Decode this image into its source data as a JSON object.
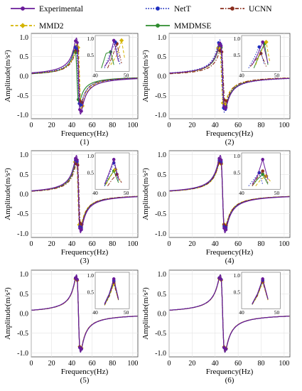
{
  "legend": {
    "entries": [
      {
        "label": "Experimental",
        "color": "#6a1b9a",
        "style": "solid",
        "marker": "circle"
      },
      {
        "label": "NetT",
        "color": "#1f2fbf",
        "style": "dotted",
        "marker": "circle"
      },
      {
        "label": "UCNN",
        "color": "#8b2f1f",
        "style": "dashdot",
        "marker": "circle"
      },
      {
        "label": "MMD2",
        "color": "#d4b400",
        "style": "dashed",
        "marker": "diamond"
      },
      {
        "label": "MMDMSE",
        "color": "#2e8b2e",
        "style": "solid",
        "marker": "circle"
      }
    ]
  },
  "chart_data": [
    {
      "type": "line",
      "panel_label": "(1)",
      "xlabel": "Frequency(Hz)",
      "ylabel": "Amplitude(m/s²)",
      "xlim": [
        0,
        105
      ],
      "ylim": [
        -1.1,
        1.1
      ],
      "xticks": [
        "0",
        "20",
        "40",
        "60",
        "80",
        "100"
      ],
      "yticks": [
        "-1.0",
        "-0.5",
        "0.0",
        "0.5",
        "1.0"
      ],
      "grid": true,
      "inset": {
        "yticks": [
          "1.0",
          "0.5"
        ],
        "xticks": [
          "40",
          "50"
        ],
        "series": [
          {
            "name": "Experimental",
            "x": [
              43,
              44.5,
              46,
              47.5
            ],
            "y": [
              0.15,
              0.35,
              0.95,
              0.3
            ]
          },
          {
            "name": "NetT",
            "x": [
              43,
              45,
              46.5,
              48
            ],
            "y": [
              0.1,
              0.6,
              0.9,
              0.2
            ]
          },
          {
            "name": "UCNN",
            "x": [
              44,
              45.5,
              47,
              48.5
            ],
            "y": [
              0.1,
              0.45,
              0.85,
              0.25
            ]
          },
          {
            "name": "MMD2",
            "x": [
              45,
              47,
              48.5,
              49.5
            ],
            "y": [
              0.2,
              0.5,
              0.95,
              0.4
            ]
          },
          {
            "name": "MMDMSE",
            "x": [
              42,
              43.5,
              45,
              46
            ],
            "y": [
              0.1,
              0.55,
              0.6,
              0.2
            ]
          }
        ]
      },
      "series": [
        {
          "name": "Experimental",
          "f0": 46.5,
          "amp": 1.0
        },
        {
          "name": "NetT",
          "f0": 46.0,
          "amp": 0.82
        },
        {
          "name": "UCNN",
          "f0": 47.0,
          "amp": 0.75
        },
        {
          "name": "MMD2",
          "f0": 47.5,
          "amp": 0.85
        },
        {
          "name": "MMDMSE",
          "f0": 45.0,
          "amp": 0.7
        }
      ]
    },
    {
      "type": "line",
      "panel_label": "(2)",
      "xlabel": "Frequency(Hz)",
      "ylabel": "Amplitude(m/s²)",
      "xlim": [
        0,
        105
      ],
      "ylim": [
        -1.1,
        1.1
      ],
      "xticks": [
        "0",
        "20",
        "40",
        "60",
        "80",
        "100"
      ],
      "yticks": [
        "-1.0",
        "-0.5",
        "0.0",
        "0.5",
        "1.0"
      ],
      "grid": true,
      "inset": {
        "yticks": [
          "1.0",
          "0.5"
        ],
        "xticks": [
          "40",
          "50"
        ],
        "series": [
          {
            "name": "Experimental",
            "x": [
              43,
              44.5,
              46,
              47.5
            ],
            "y": [
              0.2,
              0.5,
              0.9,
              0.25
            ]
          },
          {
            "name": "NetT",
            "x": [
              42,
              43.5,
              45,
              46.5
            ],
            "y": [
              0.1,
              0.4,
              0.75,
              0.2
            ]
          },
          {
            "name": "UCNN",
            "x": [
              42.5,
              44,
              45.5,
              47
            ],
            "y": [
              0.15,
              0.35,
              0.55,
              0.15
            ]
          },
          {
            "name": "MMD2",
            "x": [
              44,
              45.5,
              47,
              48
            ],
            "y": [
              0.2,
              0.6,
              0.9,
              0.3
            ]
          },
          {
            "name": "MMDMSE",
            "x": [
              43.5,
              45,
              46.5,
              47.5
            ],
            "y": [
              0.1,
              0.5,
              0.85,
              0.2
            ]
          }
        ]
      },
      "series": [
        {
          "name": "Experimental",
          "f0": 46.5,
          "amp": 0.9
        },
        {
          "name": "NetT",
          "f0": 46.0,
          "amp": 0.95
        },
        {
          "name": "UCNN",
          "f0": 47.0,
          "amp": 0.72
        },
        {
          "name": "MMD2",
          "f0": 45.5,
          "amp": 0.8
        },
        {
          "name": "MMDMSE",
          "f0": 46.5,
          "amp": 0.85
        }
      ]
    },
    {
      "type": "line",
      "panel_label": "(3)",
      "xlabel": "Frequency(Hz)",
      "ylabel": "Amplitude(m/s²)",
      "xlim": [
        0,
        105
      ],
      "ylim": [
        -1.1,
        1.1
      ],
      "xticks": [
        "0",
        "20",
        "40",
        "60",
        "80",
        "100"
      ],
      "yticks": [
        "-1.0",
        "-0.5",
        "0.0",
        "0.5",
        "1.0"
      ],
      "grid": true,
      "inset": {
        "yticks": [
          "1.0",
          "0.5"
        ],
        "xticks": [
          "40",
          "50"
        ],
        "series": [
          {
            "name": "Experimental",
            "x": [
              43,
              44.5,
              46,
              47.5
            ],
            "y": [
              0.15,
              0.5,
              0.9,
              0.3
            ]
          },
          {
            "name": "NetT",
            "x": [
              43,
              44.5,
              46,
              47.5
            ],
            "y": [
              0.1,
              0.45,
              0.8,
              0.25
            ]
          },
          {
            "name": "UCNN",
            "x": [
              44,
              45.5,
              47,
              48.5
            ],
            "y": [
              0.1,
              0.3,
              0.45,
              0.2
            ]
          },
          {
            "name": "MMD2",
            "x": [
              43.5,
              45,
              46.5,
              48
            ],
            "y": [
              0.15,
              0.4,
              0.6,
              0.25
            ]
          },
          {
            "name": "MMDMSE",
            "x": [
              43,
              44.5,
              46,
              47.5
            ],
            "y": [
              0.1,
              0.35,
              0.55,
              0.2
            ]
          }
        ]
      },
      "series": [
        {
          "name": "Experimental",
          "f0": 46.5,
          "amp": 1.0
        },
        {
          "name": "NetT",
          "f0": 46.5,
          "amp": 0.95
        },
        {
          "name": "UCNN",
          "f0": 47.0,
          "amp": 0.85
        },
        {
          "name": "MMD2",
          "f0": 46.0,
          "amp": 0.9
        },
        {
          "name": "MMDMSE",
          "f0": 46.5,
          "amp": 0.9
        }
      ]
    },
    {
      "type": "line",
      "panel_label": "(4)",
      "xlabel": "Frequency(Hz)",
      "ylabel": "Amplitude(m/s²)",
      "xlim": [
        0,
        105
      ],
      "ylim": [
        -1.1,
        1.1
      ],
      "xticks": [
        "0",
        "20",
        "40",
        "60",
        "80",
        "100"
      ],
      "yticks": [
        "-1.0",
        "-0.5",
        "0.0",
        "0.5",
        "1.0"
      ],
      "grid": true,
      "inset": {
        "yticks": [
          "1.0",
          "0.5"
        ],
        "xticks": [
          "40",
          "50"
        ],
        "series": [
          {
            "name": "Experimental",
            "x": [
              43,
              44.5,
              46,
              47.5
            ],
            "y": [
              0.15,
              0.4,
              0.9,
              0.3
            ]
          },
          {
            "name": "NetT",
            "x": [
              42,
              43.5,
              45,
              46
            ],
            "y": [
              0.1,
              0.3,
              0.5,
              0.15
            ]
          },
          {
            "name": "UCNN",
            "x": [
              43,
              44.5,
              46,
              47.5
            ],
            "y": [
              0.1,
              0.35,
              0.55,
              0.2
            ]
          },
          {
            "name": "MMD2",
            "x": [
              44,
              45.5,
              47,
              48.5
            ],
            "y": [
              0.1,
              0.3,
              0.4,
              0.2
            ]
          },
          {
            "name": "MMDMSE",
            "x": [
              43,
              44.5,
              46,
              47.5
            ],
            "y": [
              0.1,
              0.3,
              0.45,
              0.15
            ]
          }
        ]
      },
      "series": [
        {
          "name": "Experimental",
          "f0": 46.5,
          "amp": 1.0
        },
        {
          "name": "NetT",
          "f0": 46.5,
          "amp": 0.95
        },
        {
          "name": "UCNN",
          "f0": 46.5,
          "amp": 0.9
        },
        {
          "name": "MMD2",
          "f0": 46.5,
          "amp": 0.88
        },
        {
          "name": "MMDMSE",
          "f0": 46.5,
          "amp": 0.92
        }
      ]
    },
    {
      "type": "line",
      "panel_label": "(5)",
      "xlabel": "Frequency(Hz)",
      "ylabel": "Amplitude(m/s²)",
      "xlim": [
        0,
        105
      ],
      "ylim": [
        -1.1,
        1.1
      ],
      "xticks": [
        "0",
        "20",
        "40",
        "60",
        "80",
        "100"
      ],
      "yticks": [
        "-1.0",
        "-0.5",
        "0.0",
        "0.5",
        "1.0"
      ],
      "grid": true,
      "inset": {
        "yticks": [
          "1.0",
          "0.5"
        ],
        "xticks": [
          "40",
          "50"
        ],
        "series": [
          {
            "name": "Experimental",
            "x": [
              43,
              44.5,
              46,
              47.5
            ],
            "y": [
              0.15,
              0.45,
              0.9,
              0.3
            ]
          },
          {
            "name": "NetT",
            "x": [
              43,
              44.5,
              46,
              47.5
            ],
            "y": [
              0.12,
              0.4,
              0.85,
              0.28
            ]
          },
          {
            "name": "UCNN",
            "x": [
              43,
              44.5,
              46,
              47.5
            ],
            "y": [
              0.12,
              0.38,
              0.8,
              0.26
            ]
          },
          {
            "name": "MMD2",
            "x": [
              43,
              44.5,
              46,
              47.5
            ],
            "y": [
              0.1,
              0.35,
              0.75,
              0.25
            ]
          },
          {
            "name": "MMDMSE",
            "x": [
              43,
              44.5,
              46,
              47.5
            ],
            "y": [
              0.12,
              0.4,
              0.82,
              0.27
            ]
          }
        ]
      },
      "series": [
        {
          "name": "Experimental",
          "f0": 46.5,
          "amp": 1.0
        },
        {
          "name": "NetT",
          "f0": 46.5,
          "amp": 1.0
        },
        {
          "name": "UCNN",
          "f0": 46.5,
          "amp": 0.98
        },
        {
          "name": "MMD2",
          "f0": 46.5,
          "amp": 0.97
        },
        {
          "name": "MMDMSE",
          "f0": 46.5,
          "amp": 0.99
        }
      ]
    },
    {
      "type": "line",
      "panel_label": "(6)",
      "xlabel": "Frequency(Hz)",
      "ylabel": "Amplitude(m/s²)",
      "xlim": [
        0,
        105
      ],
      "ylim": [
        -1.1,
        1.1
      ],
      "xticks": [
        "0",
        "20",
        "40",
        "60",
        "80",
        "100"
      ],
      "yticks": [
        "-1.0",
        "-0.5",
        "0.0",
        "0.5",
        "1.0"
      ],
      "grid": true,
      "inset": {
        "yticks": [
          "1.0",
          "0.5"
        ],
        "xticks": [
          "40",
          "50"
        ],
        "series": [
          {
            "name": "Experimental",
            "x": [
              43,
              44.5,
              46,
              47.5
            ],
            "y": [
              0.15,
              0.45,
              0.9,
              0.3
            ]
          },
          {
            "name": "NetT",
            "x": [
              43,
              44.5,
              46,
              47.5
            ],
            "y": [
              0.13,
              0.42,
              0.86,
              0.28
            ]
          },
          {
            "name": "UCNN",
            "x": [
              43,
              44.5,
              46,
              47.5
            ],
            "y": [
              0.13,
              0.4,
              0.84,
              0.27
            ]
          },
          {
            "name": "MMD2",
            "x": [
              43,
              44.5,
              46,
              47.5
            ],
            "y": [
              0.12,
              0.38,
              0.8,
              0.26
            ]
          },
          {
            "name": "MMDMSE",
            "x": [
              43,
              44.5,
              46,
              47.5
            ],
            "y": [
              0.13,
              0.41,
              0.85,
              0.28
            ]
          }
        ]
      },
      "series": [
        {
          "name": "Experimental",
          "f0": 46.5,
          "amp": 1.0
        },
        {
          "name": "NetT",
          "f0": 46.5,
          "amp": 1.0
        },
        {
          "name": "UCNN",
          "f0": 46.5,
          "amp": 0.99
        },
        {
          "name": "MMD2",
          "f0": 46.5,
          "amp": 0.98
        },
        {
          "name": "MMDMSE",
          "f0": 46.5,
          "amp": 1.0
        }
      ]
    }
  ]
}
